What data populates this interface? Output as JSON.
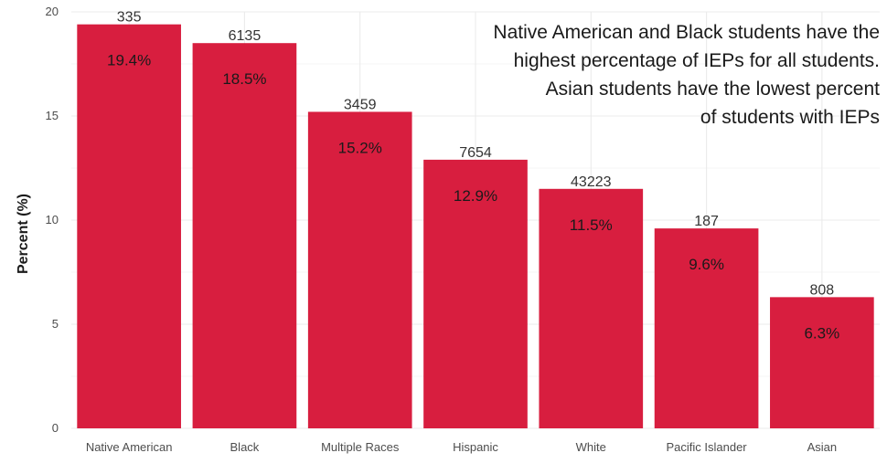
{
  "chart_data": {
    "type": "bar",
    "categories": [
      "Native American",
      "Black",
      "Multiple Races",
      "Hispanic",
      "White",
      "Pacific Islander",
      "Asian"
    ],
    "values": [
      19.4,
      18.5,
      15.2,
      12.9,
      11.5,
      9.6,
      6.3
    ],
    "value_labels": [
      "19.4%",
      "18.5%",
      "15.2%",
      "12.9%",
      "11.5%",
      "9.6%",
      "6.3%"
    ],
    "count_labels": [
      "335",
      "6135",
      "3459",
      "7654",
      "43223",
      "187",
      "808"
    ],
    "ylabel": "Percent (%)",
    "yticks": [
      0,
      5,
      10,
      15,
      20
    ],
    "ylim": [
      0,
      20
    ],
    "grid": true,
    "bar_color": "#d81e3f",
    "annotation_lines": [
      "Native American and Black students have the",
      "highest percentage of IEPs for all students.",
      "Asian students have the lowest percent",
      "of students with IEPs"
    ]
  }
}
